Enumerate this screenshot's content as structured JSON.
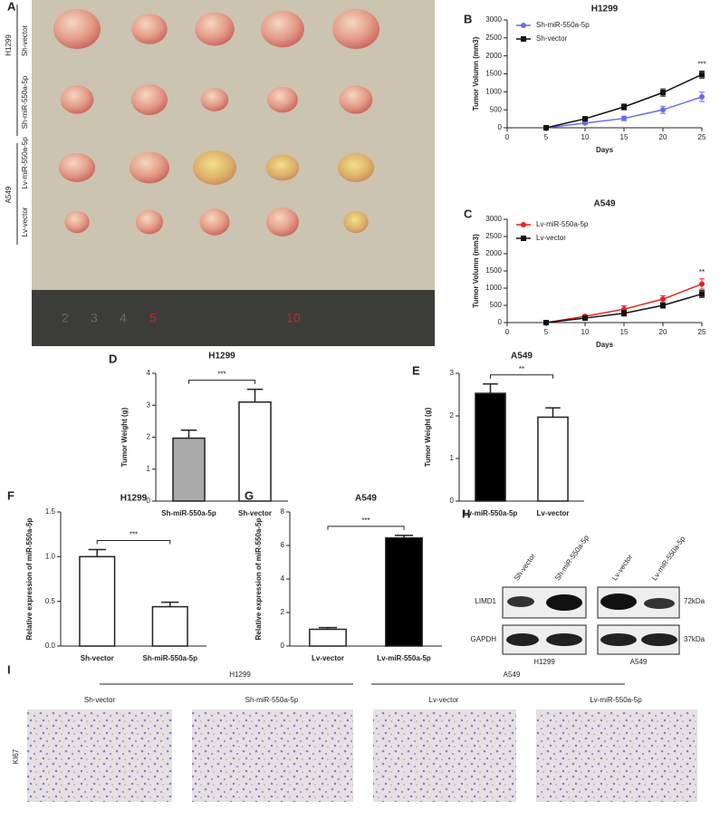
{
  "panel_a": {
    "panel": "A",
    "h1299": "H1299",
    "a549": "A549",
    "rows": [
      "Sh-vector",
      "Sh-miR-550a-5p",
      "Lv-miR-550a-5p",
      "Lv-vector"
    ],
    "ruler_labels": [
      "2",
      "3",
      "4",
      "5",
      "10"
    ]
  },
  "chart_data": [
    {
      "type": "line",
      "panel": "B",
      "title": "H1299",
      "xlabel": "Days",
      "ylabel": "Tumor Volumn (mm3)",
      "x": [
        5,
        10,
        15,
        20,
        25
      ],
      "xlim": [
        0,
        25
      ],
      "xticks": [
        0,
        5,
        10,
        15,
        20,
        25
      ],
      "ylim": [
        0,
        3000
      ],
      "yticks": [
        0,
        500,
        1000,
        1500,
        2000,
        2500,
        3000
      ],
      "legend": "upper left",
      "annotation": "***",
      "series": [
        {
          "name": "Sh-miR-550a-5p",
          "color": "#6b6bee",
          "marker": "circle",
          "values": [
            0,
            130,
            260,
            500,
            860
          ],
          "errors": [
            0,
            30,
            60,
            100,
            130
          ]
        },
        {
          "name": "Sh-vector",
          "color": "#111111",
          "marker": "square",
          "values": [
            0,
            250,
            580,
            980,
            1480
          ],
          "errors": [
            0,
            40,
            80,
            100,
            100
          ]
        }
      ]
    },
    {
      "type": "line",
      "panel": "C",
      "title": "A549",
      "xlabel": "Days",
      "ylabel": "Tumor Volumn (mm3)",
      "x": [
        5,
        10,
        15,
        20,
        25
      ],
      "xlim": [
        0,
        25
      ],
      "xticks": [
        0,
        5,
        10,
        15,
        20,
        25
      ],
      "ylim": [
        0,
        3000
      ],
      "yticks": [
        0,
        500,
        1000,
        1500,
        2000,
        2500,
        3000
      ],
      "legend": "upper left",
      "annotation": "**",
      "series": [
        {
          "name": "Lv-miR-550a-5p",
          "color": "#e82020",
          "marker": "circle",
          "values": [
            0,
            180,
            390,
            680,
            1120
          ],
          "errors": [
            0,
            40,
            100,
            100,
            150
          ]
        },
        {
          "name": "Lv-vector",
          "color": "#111111",
          "marker": "square",
          "values": [
            0,
            130,
            270,
            500,
            830
          ],
          "errors": [
            0,
            30,
            80,
            80,
            100
          ]
        }
      ]
    },
    {
      "type": "bar",
      "panel": "D",
      "title": "H1299",
      "ylabel": "Tumor Weight (g)",
      "categories": [
        "Sh-miR-550a-5p",
        "Sh-vector"
      ],
      "values": [
        1.97,
        3.1
      ],
      "errors": [
        0.25,
        0.4
      ],
      "colors": [
        "#aaaaaa",
        "#ffffff"
      ],
      "ylim": [
        0,
        4
      ],
      "yticks": [
        0,
        1,
        2,
        3,
        4
      ],
      "annotation": "***"
    },
    {
      "type": "bar",
      "panel": "E",
      "title": "A549",
      "ylabel": "Tumor Weight (g)",
      "categories": [
        "Lv-miR-550a-5p",
        "Lv-vector"
      ],
      "values": [
        2.53,
        1.97
      ],
      "errors": [
        0.22,
        0.22
      ],
      "colors": [
        "#000000",
        "#ffffff"
      ],
      "ylim": [
        0,
        3
      ],
      "yticks": [
        0,
        1,
        2,
        3
      ],
      "annotation": "**"
    },
    {
      "type": "bar",
      "panel": "F",
      "title": "H1299",
      "ylabel": "Relative expression of miR-550a-5p",
      "categories": [
        "Sh-vector",
        "Sh-miR-550a-5p"
      ],
      "values": [
        1.0,
        0.44
      ],
      "errors": [
        0.08,
        0.05
      ],
      "colors": [
        "#ffffff",
        "#ffffff"
      ],
      "ylim": [
        0,
        1.5
      ],
      "yticks": [
        {
          "value": 0,
          "label": "0.0"
        },
        0.5,
        {
          "value": 1,
          "label": "1.0"
        },
        1.5
      ],
      "annotation": "***"
    },
    {
      "type": "bar",
      "panel": "G",
      "title": "A549",
      "ylabel": "Relative expression of miR-550a-5p",
      "categories": [
        "Lv-vector",
        "Lv-miR-550a-5p"
      ],
      "values": [
        1.0,
        6.45
      ],
      "errors": [
        0.1,
        0.15
      ],
      "colors": [
        "#ffffff",
        "#000000"
      ],
      "ylim": [
        0,
        8
      ],
      "yticks": [
        0,
        2,
        4,
        6,
        8
      ],
      "annotation": "***"
    }
  ],
  "panel_h": {
    "panel": "H",
    "lanes": [
      "Sh-vector",
      "Sh-miR-550a-5p",
      "Lv-vector",
      "Lv-miR-550a-5p"
    ],
    "proteins": [
      "LIMD1",
      "GAPDH"
    ],
    "sizes": [
      "72kDa",
      "37kDa"
    ],
    "cells": [
      "H1299",
      "A549"
    ]
  },
  "panel_i": {
    "panel": "I",
    "groups": [
      "H1299",
      "A549"
    ],
    "images": [
      "Sh-vector",
      "Sh-miR-550a-5p",
      "Lv-vector",
      "Lv-miR-550a-5p"
    ],
    "stain": "KI67"
  }
}
